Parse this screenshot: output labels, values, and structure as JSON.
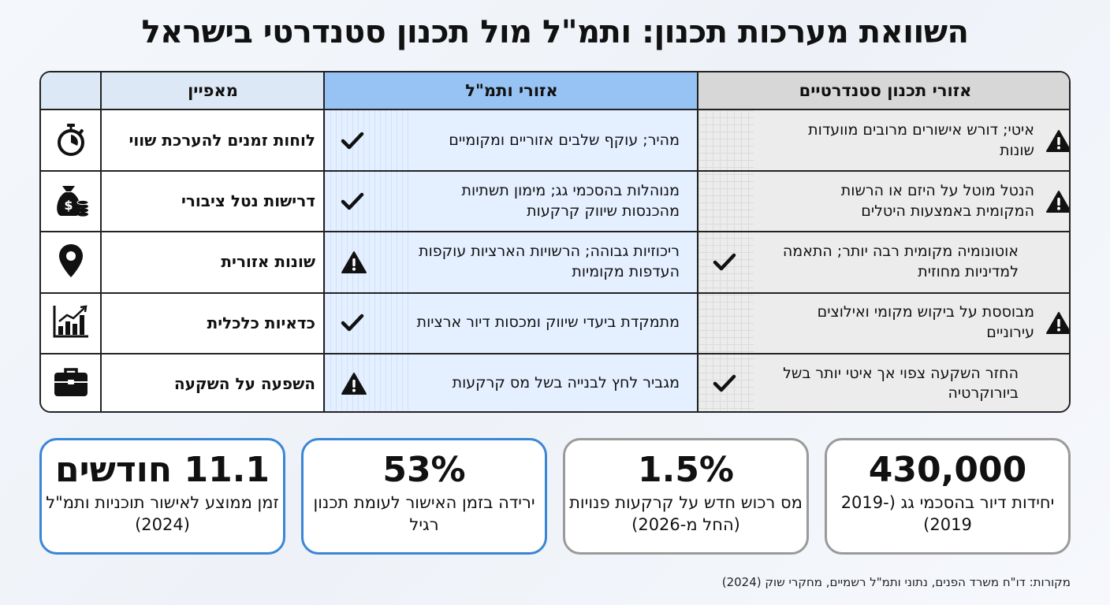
{
  "title": "השוואת מערכות תכנון: ותמ\"ל מול תכנון סטנדרטי בישראל",
  "table": {
    "headers": {
      "standard": "אזורי תכנון סטנדרטיים",
      "tamal": "אזורי ותמ\"ל",
      "feature": "מאפיין"
    },
    "rows": [
      {
        "icon": "stopwatch-icon",
        "feature": "לוחות זמנים להערכת שווי",
        "tamal": "מהיר; עוקף שלבים אזוריים ומקומיים",
        "tamal_mark": "check",
        "standard": "איטי; דורש אישורים מרובים מוועדות שונות",
        "standard_mark": "warning"
      },
      {
        "icon": "money-bag-icon",
        "feature": "דרישות נטל ציבורי",
        "tamal": "מנוהלות בהסכמי גג; מימון תשתיות מהכנסות שיווק קרקעות",
        "tamal_mark": "check",
        "standard": "הנטל מוטל על היזם או הרשות המקומית באמצעות היטלים",
        "standard_mark": "warning"
      },
      {
        "icon": "location-pin-icon",
        "feature": "שונות אזורית",
        "tamal": "ריכוזיות גבוהה; הרשויות הארציות עוקפות העדפות מקומיות",
        "tamal_mark": "warning",
        "standard": "אוטונומיה מקומית רבה יותר; התאמה למדיניות מחוזית",
        "standard_mark": "check"
      },
      {
        "icon": "bar-chart-icon",
        "feature": "כדאיות כלכלית",
        "tamal": "מתמקדת ביעדי שיווק ומכסות דיור ארציות",
        "tamal_mark": "check",
        "standard": "מבוססת על ביקוש מקומי ואילוצים עירוניים",
        "standard_mark": "warning"
      },
      {
        "icon": "briefcase-icon",
        "feature": "השפעה על השקעה",
        "tamal": "מגביר לחץ לבנייה בשל מס קרקעות",
        "tamal_mark": "warning",
        "standard": "החזר השקעה צפוי אך איטי יותר בשל ביורוקרטיה",
        "standard_mark": "check"
      }
    ]
  },
  "stats": [
    {
      "value": "11.1 חודשים",
      "label": "זמן ממוצע לאישור תוכניות ותמ\"ל (2024)",
      "style": "blue"
    },
    {
      "value": "53%",
      "label": "ירידה בזמן האישור לעומת תכנון רגיל",
      "style": "blue"
    },
    {
      "value": "1.5%",
      "label": "מס רכוש חדש על קרקעות פנויות (החל מ-2026)",
      "style": "gray"
    },
    {
      "value": "430,000",
      "label": "יחידות דיור בהסכמי גג (2019-2019)",
      "style": "gray"
    }
  ],
  "sources": "מקורות: דו\"ח משרד הפנים, נתוני ותמ\"ל רשמיים, מחקרי שוק (2024)",
  "colors": {
    "header_standard": "#d7d7d7",
    "header_tamal": "#96c3f3",
    "header_feature": "#dde8f6",
    "stat_blue_border": "#3a86d6",
    "stat_gray_border": "#9a9a9a"
  }
}
